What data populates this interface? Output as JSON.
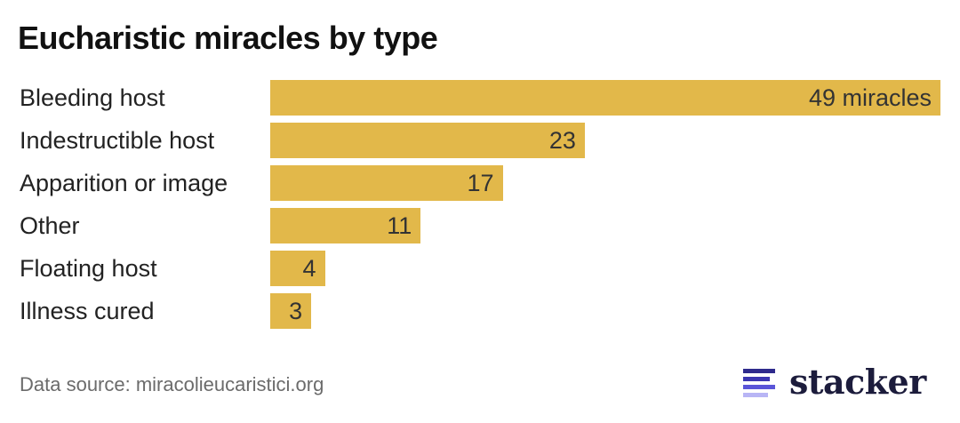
{
  "chart_data": {
    "type": "bar",
    "orientation": "horizontal",
    "title": "Eucharistic miracles by type",
    "categories": [
      "Bleeding host",
      "Indestructible host",
      "Apparition or image",
      "Other",
      "Floating host",
      "Illness cured"
    ],
    "values": [
      49,
      23,
      17,
      11,
      4,
      3
    ],
    "value_labels": [
      "49 miracles",
      "23",
      "17",
      "11",
      "4",
      "3"
    ],
    "xlabel": "",
    "ylabel": "",
    "xlim": [
      0,
      49
    ],
    "grid": false,
    "legend": null,
    "bar_color": "#e2b84a"
  },
  "footer": {
    "source": "Data source: miracolieucaristici.org",
    "brand": "stacker",
    "brand_icon": "stacker-stripes-icon"
  }
}
